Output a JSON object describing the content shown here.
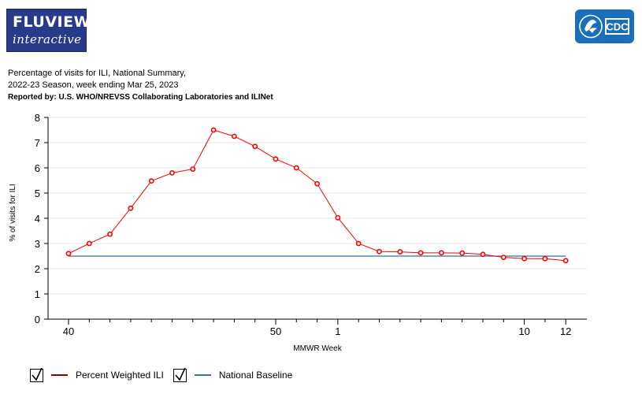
{
  "header": {
    "logo_line1": "FLUVIEW",
    "logo_line2": "interactive",
    "cdc_logo_text": "CDC"
  },
  "titles": {
    "line1": "Percentage of visits for ILI, National Summary,",
    "line2": "2022-23 Season, week ending Mar 25, 2023",
    "line3": "Reported by: U.S. WHO/NREVSS Collaborating Laboratories and ILINet"
  },
  "legend": {
    "items": [
      {
        "label": "Percent Weighted ILI",
        "color": "#8b0000",
        "checked": true
      },
      {
        "label": "National Baseline",
        "color": "#3a6ea5",
        "checked": true
      }
    ]
  },
  "colors": {
    "ili_line": "#ff0000",
    "baseline": "#3a6ea5",
    "grid": "#e6e6e6"
  },
  "chart_data": {
    "type": "line",
    "xlabel": "MMWR Week",
    "ylabel": "% of visits for ILI",
    "ylim": [
      0,
      8
    ],
    "yticks": [
      0,
      1,
      2,
      3,
      4,
      5,
      6,
      7,
      8
    ],
    "x": [
      40,
      41,
      42,
      43,
      44,
      45,
      46,
      47,
      48,
      49,
      50,
      51,
      52,
      1,
      2,
      3,
      4,
      5,
      6,
      7,
      8,
      9,
      10,
      11,
      12
    ],
    "xtick_labels": {
      "40": "40",
      "50": "50",
      "1": "1",
      "10": "10",
      "12": "12"
    },
    "grid": true,
    "series": [
      {
        "name": "Percent Weighted ILI",
        "marker": "circle",
        "values": [
          2.6,
          3.0,
          3.37,
          4.4,
          5.48,
          5.8,
          5.95,
          7.5,
          7.25,
          6.85,
          6.35,
          6.0,
          5.37,
          4.02,
          3.0,
          2.68,
          2.67,
          2.63,
          2.63,
          2.62,
          2.57,
          2.45,
          2.4,
          2.4,
          2.32
        ]
      },
      {
        "name": "National Baseline",
        "values": [
          2.5,
          2.5,
          2.5,
          2.5,
          2.5,
          2.5,
          2.5,
          2.5,
          2.5,
          2.5,
          2.5,
          2.5,
          2.5,
          2.5,
          2.5,
          2.5,
          2.5,
          2.5,
          2.5,
          2.5,
          2.5,
          2.5,
          2.5,
          2.5,
          2.5
        ]
      }
    ]
  }
}
